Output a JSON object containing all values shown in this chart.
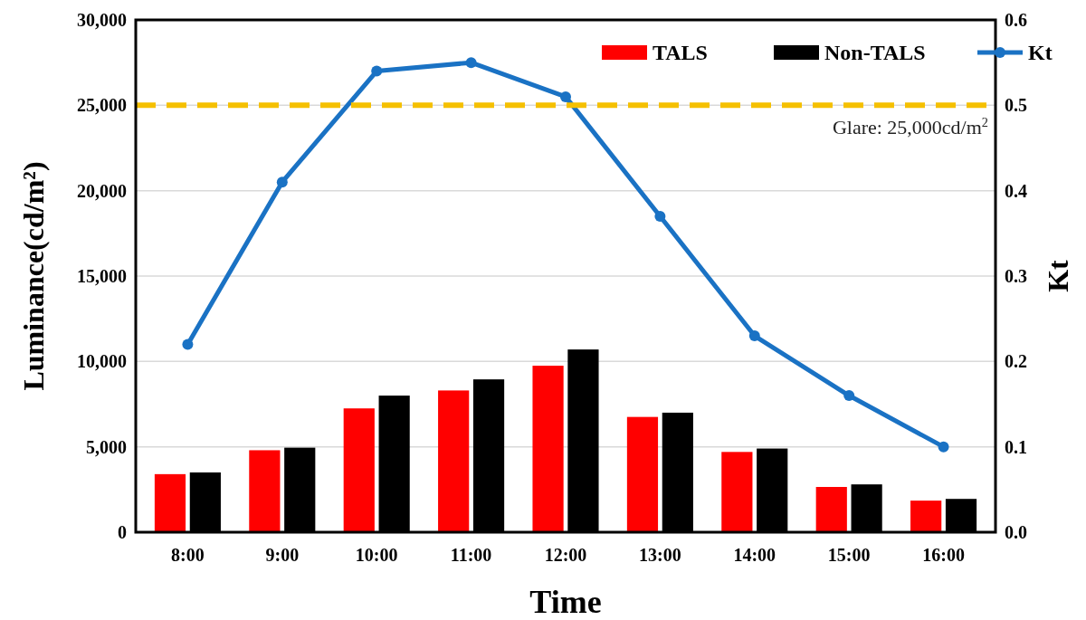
{
  "chart_data": {
    "type": "bar",
    "xlabel": "Time",
    "ylabel": "Luminance(cd/m²)",
    "y2label": "Kt",
    "categories": [
      "8:00",
      "9:00",
      "10:00",
      "11:00",
      "12:00",
      "13:00",
      "14:00",
      "15:00",
      "16:00"
    ],
    "series": [
      {
        "name": "TALS",
        "color": "#ff0000",
        "values": [
          3400,
          4800,
          7250,
          8300,
          9750,
          6750,
          4700,
          2650,
          1850
        ]
      },
      {
        "name": "Non-TALS",
        "color": "#000000",
        "values": [
          3500,
          4950,
          8000,
          8950,
          10700,
          7000,
          4900,
          2800,
          1950
        ]
      },
      {
        "name": "Kt",
        "type": "line",
        "axis": "y2",
        "color": "#1a72c4",
        "marker": "circle",
        "values": [
          0.22,
          0.41,
          0.54,
          0.55,
          0.51,
          0.37,
          0.23,
          0.16,
          0.1
        ]
      }
    ],
    "ylim": [
      0,
      30000
    ],
    "yticks": [
      {
        "value": 0,
        "label": "0"
      },
      {
        "value": 5000,
        "label": "5,000"
      },
      {
        "value": 10000,
        "label": "10,000"
      },
      {
        "value": 15000,
        "label": "15,000"
      },
      {
        "value": 20000,
        "label": "20,000"
      },
      {
        "value": 25000,
        "label": "25,000"
      },
      {
        "value": 30000,
        "label": "30,000"
      }
    ],
    "y2lim": [
      0,
      0.6
    ],
    "y2ticks": [
      {
        "value": 0,
        "label": "0.0"
      },
      0.1,
      0.2,
      0.3,
      0.4,
      0.5,
      0.6
    ],
    "ref_lines": [
      {
        "axis": "y",
        "value": 25000,
        "label": "Glare: 25,000cd/m$^{2}$",
        "color": "#f5c000",
        "line_style": "dashed"
      }
    ],
    "grid": "y",
    "legend": "top right"
  }
}
